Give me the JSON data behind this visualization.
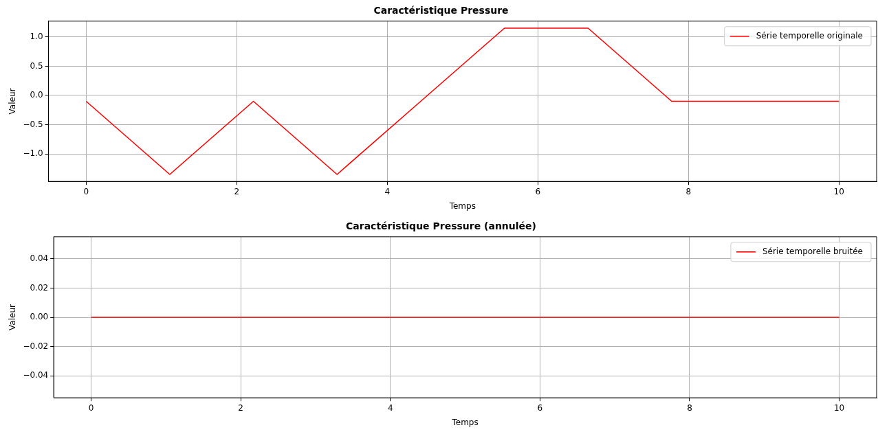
{
  "chart_data": [
    {
      "type": "line",
      "title": "Caractéristique Pressure",
      "xlabel": "Temps",
      "ylabel": "Valeur",
      "x": [
        0,
        1.111,
        2.222,
        3.333,
        4.444,
        5.556,
        6.667,
        7.778,
        8.889,
        10
      ],
      "series": [
        {
          "name": "Série temporelle originale",
          "color": "#ff0000",
          "values": [
            -0.1,
            -1.35,
            -0.1,
            -1.35,
            -0.1,
            1.15,
            1.15,
            -0.1,
            -0.1,
            -0.1
          ]
        }
      ],
      "xlim": [
        -0.5,
        10.5
      ],
      "xticks": [
        0,
        2,
        4,
        6,
        8,
        10
      ],
      "ylim": [
        -1.47,
        1.27
      ],
      "yticks": [
        {
          "value": -1,
          "label": "−1.0"
        },
        {
          "value": -0.5,
          "label": "−0.5"
        },
        {
          "value": 0,
          "label": "0.0"
        },
        {
          "value": 0.5,
          "label": "0.5"
        },
        {
          "value": 1,
          "label": "1.0"
        }
      ],
      "grid": true,
      "legend": "top right"
    },
    {
      "type": "line",
      "title": "Caractéristique Pressure (annulée)",
      "xlabel": "Temps",
      "ylabel": "Valeur",
      "x": [
        0,
        10
      ],
      "series": [
        {
          "name": "Série temporelle bruitée",
          "color": "#ff0000",
          "values": [
            0,
            0
          ]
        }
      ],
      "xlim": [
        -0.5,
        10.5
      ],
      "xticks": [
        0,
        2,
        4,
        6,
        8,
        10
      ],
      "ylim": [
        -0.055,
        0.055
      ],
      "yticks": [
        {
          "value": -0.04,
          "label": "−0.04"
        },
        {
          "value": -0.02,
          "label": "−0.02"
        },
        {
          "value": 0,
          "label": "0.00"
        },
        {
          "value": 0.02,
          "label": "0.02"
        },
        {
          "value": 0.04,
          "label": "0.04"
        }
      ],
      "grid": true,
      "legend": "top right"
    }
  ]
}
